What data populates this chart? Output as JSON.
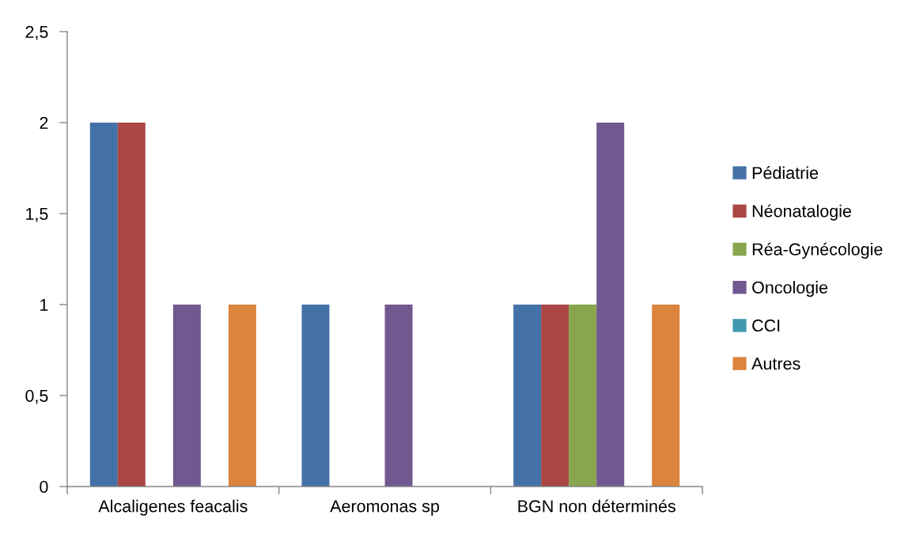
{
  "chart_data": {
    "type": "bar",
    "categories": [
      "Alcaligenes feacalis",
      "Aeromonas sp",
      "BGN non déterminés"
    ],
    "series": [
      {
        "name": "Pédiatrie",
        "color": "#4472a8",
        "values": [
          2,
          1,
          1
        ]
      },
      {
        "name": "Néonatalogie",
        "color": "#aa4644",
        "values": [
          2,
          null,
          1
        ]
      },
      {
        "name": "Réa-Gynécologie",
        "color": "#89a54e",
        "values": [
          null,
          null,
          1
        ]
      },
      {
        "name": "Oncologie",
        "color": "#71588f",
        "values": [
          1,
          1,
          2
        ]
      },
      {
        "name": "CCI",
        "color": "#4198af",
        "values": [
          null,
          null,
          null
        ]
      },
      {
        "name": "Autres",
        "color": "#db843d",
        "values": [
          1,
          null,
          1
        ]
      }
    ],
    "ylim": [
      0,
      2.5
    ],
    "yticks": [
      0,
      {
        "value": 0.5,
        "label": "0,5"
      },
      1,
      {
        "value": 1.5,
        "label": "1,5"
      },
      2,
      {
        "value": 2.5,
        "label": "2,5"
      }
    ],
    "grid": false,
    "legend": "right"
  }
}
